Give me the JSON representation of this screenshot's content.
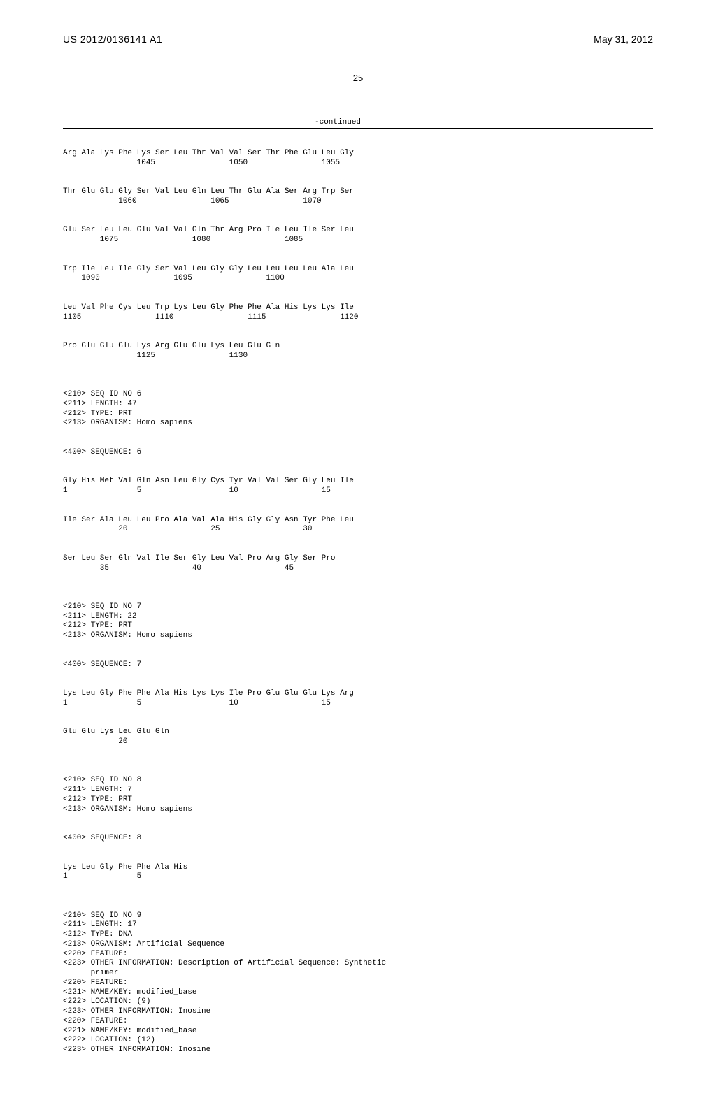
{
  "header": {
    "publication": "US 2012/0136141 A1",
    "date": "May 31, 2012"
  },
  "page_number": "25",
  "continued_label": "-continued",
  "seq_blocks": [
    {
      "line1": "Arg Ala Lys Phe Lys Ser Leu Thr Val Val Ser Thr Phe Glu Leu Gly",
      "line2": "                1045                1050                1055"
    },
    {
      "line1": "Thr Glu Glu Gly Ser Val Leu Gln Leu Thr Glu Ala Ser Arg Trp Ser",
      "line2": "            1060                1065                1070"
    },
    {
      "line1": "Glu Ser Leu Leu Glu Val Val Gln Thr Arg Pro Ile Leu Ile Ser Leu",
      "line2": "        1075                1080                1085"
    },
    {
      "line1": "Trp Ile Leu Ile Gly Ser Val Leu Gly Gly Leu Leu Leu Leu Ala Leu",
      "line2": "    1090                1095                1100"
    },
    {
      "line1": "Leu Val Phe Cys Leu Trp Lys Leu Gly Phe Phe Ala His Lys Lys Ile",
      "line2": "1105                1110                1115                1120"
    },
    {
      "line1": "Pro Glu Glu Glu Lys Arg Glu Glu Lys Leu Glu Gln",
      "line2": "                1125                1130"
    }
  ],
  "seq6_meta": [
    "<210> SEQ ID NO 6",
    "<211> LENGTH: 47",
    "<212> TYPE: PRT",
    "<213> ORGANISM: Homo sapiens"
  ],
  "seq6_seq_label": "<400> SEQUENCE: 6",
  "seq6_blocks": [
    {
      "line1": "Gly His Met Val Gln Asn Leu Gly Cys Tyr Val Val Ser Gly Leu Ile",
      "line2": "1               5                   10                  15"
    },
    {
      "line1": "Ile Ser Ala Leu Leu Pro Ala Val Ala His Gly Gly Asn Tyr Phe Leu",
      "line2": "            20                  25                  30"
    },
    {
      "line1": "Ser Leu Ser Gln Val Ile Ser Gly Leu Val Pro Arg Gly Ser Pro",
      "line2": "        35                  40                  45"
    }
  ],
  "seq7_meta": [
    "<210> SEQ ID NO 7",
    "<211> LENGTH: 22",
    "<212> TYPE: PRT",
    "<213> ORGANISM: Homo sapiens"
  ],
  "seq7_seq_label": "<400> SEQUENCE: 7",
  "seq7_blocks": [
    {
      "line1": "Lys Leu Gly Phe Phe Ala His Lys Lys Ile Pro Glu Glu Glu Lys Arg",
      "line2": "1               5                   10                  15"
    },
    {
      "line1": "Glu Glu Lys Leu Glu Gln",
      "line2": "            20"
    }
  ],
  "seq8_meta": [
    "<210> SEQ ID NO 8",
    "<211> LENGTH: 7",
    "<212> TYPE: PRT",
    "<213> ORGANISM: Homo sapiens"
  ],
  "seq8_seq_label": "<400> SEQUENCE: 8",
  "seq8_blocks": [
    {
      "line1": "Lys Leu Gly Phe Phe Ala His",
      "line2": "1               5"
    }
  ],
  "seq9_meta": [
    "<210> SEQ ID NO 9",
    "<211> LENGTH: 17",
    "<212> TYPE: DNA",
    "<213> ORGANISM: Artificial Sequence",
    "<220> FEATURE:",
    "<223> OTHER INFORMATION: Description of Artificial Sequence: Synthetic",
    "      primer",
    "<220> FEATURE:",
    "<221> NAME/KEY: modified_base",
    "<222> LOCATION: (9)",
    "<223> OTHER INFORMATION: Inosine",
    "<220> FEATURE:",
    "<221> NAME/KEY: modified_base",
    "<222> LOCATION: (12)",
    "<223> OTHER INFORMATION: Inosine"
  ]
}
